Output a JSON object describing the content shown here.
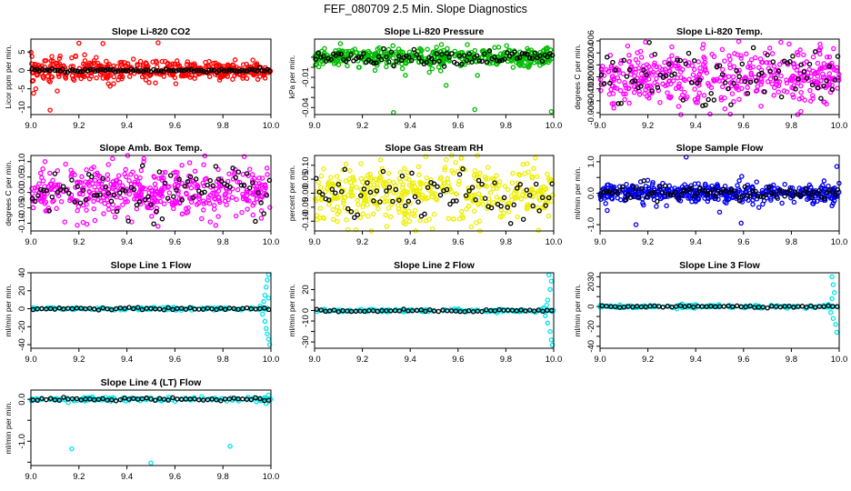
{
  "figure_title": "FEF_080709  2.5 Min. Slope Diagnostics",
  "chart_data": [
    {
      "type": "scatter",
      "title": "Slope Li-820 CO2",
      "ylabel": "Licor ppm per min.",
      "color": "#ff0000",
      "xlim": [
        9.0,
        10.0
      ],
      "ylim": [
        -12,
        8.5
      ],
      "xticks": [
        9.0,
        9.2,
        9.4,
        9.6,
        9.8,
        10.0
      ],
      "xticklabels": [
        "9.0",
        "9.2",
        "9.4",
        "9.6",
        "9.8",
        "10.0"
      ],
      "yticks": [
        -10,
        -5,
        0,
        5
      ],
      "yticklabels": [
        "-10",
        "-5",
        "0",
        "5"
      ],
      "x_range": [
        9.0,
        10.0
      ],
      "spread": 1.8,
      "decay": 0.5,
      "base": 0,
      "n": 430,
      "n_black": 95,
      "black_spread": 0.25,
      "extra": [
        [
          9.02,
          -5
        ],
        [
          9.08,
          -10.8
        ],
        [
          9.2,
          7.4
        ],
        [
          9.3,
          7.3
        ],
        [
          9.11,
          -5.6
        ],
        [
          9.17,
          3.4
        ],
        [
          9.53,
          7.5
        ],
        [
          9.33,
          -4.3
        ]
      ]
    },
    {
      "type": "scatter",
      "title": "Slope Li-820 Pressure",
      "ylabel": "kPa per min.",
      "color": "#00bb00",
      "xlim": [
        9.0,
        10.0
      ],
      "ylim": [
        -0.047,
        0.028
      ],
      "xticks": [
        9.0,
        9.2,
        9.4,
        9.6,
        9.8,
        10.0
      ],
      "xticklabels": [
        "9.0",
        "9.2",
        "9.4",
        "9.6",
        "9.8",
        "10.0"
      ],
      "yticks": [
        -0.04,
        -0.03,
        -0.02,
        -0.01,
        0.0,
        0.01
      ],
      "yticklabels": [
        "-0.04",
        "",
        "",
        "-0.01",
        "",
        ""
      ],
      "x_range": [
        9.0,
        10.0
      ],
      "spread": 0.0045,
      "decay": 0,
      "base": 0.01,
      "n": 430,
      "n_black": 95,
      "black_spread": 0.0035,
      "extra": [
        [
          9.33,
          -0.045
        ],
        [
          9.67,
          -0.042
        ],
        [
          9.99,
          -0.044
        ],
        [
          9.55,
          -0.018
        ],
        [
          9.38,
          -0.008
        ],
        [
          9.48,
          -0.005
        ],
        [
          9.51,
          0.02
        ],
        [
          9.77,
          0.02
        ]
      ]
    },
    {
      "type": "scatter",
      "title": "Slope Li-820 Temp.",
      "ylabel": "degrees C per min.",
      "color": "#ff00ff",
      "xlim": [
        9.0,
        10.0
      ],
      "ylim": [
        -0.0063,
        0.0063
      ],
      "xticks": [
        9.0,
        9.2,
        9.4,
        9.6,
        9.8,
        10.0
      ],
      "xticklabels": [
        "9.0",
        "9.2",
        "9.4",
        "9.6",
        "9.8",
        "10.0"
      ],
      "yticks": [
        -0.006,
        -0.004,
        -0.002,
        0,
        0.002,
        0.004,
        0.006
      ],
      "yticklabels": [
        "-0.006",
        "-0.004",
        "-0.002",
        "0.000",
        "0.002",
        "0.004",
        "0.006"
      ],
      "x_range": [
        9.0,
        10.0
      ],
      "spread": 0.0022,
      "decay": 0,
      "base": 0,
      "n": 450,
      "n_black": 85,
      "black_spread": 0.0022,
      "extra": [
        [
          9.05,
          -0.0045
        ],
        [
          9.19,
          0.0058
        ],
        [
          9.58,
          0.0059
        ],
        [
          9.84,
          -0.0058
        ],
        [
          9.3,
          0.005
        ],
        [
          9.71,
          0.0048
        ]
      ]
    },
    {
      "type": "scatter",
      "title": "Slope Amb. Box Temp.",
      "ylabel": "degrees C per min.",
      "color": "#ff00ff",
      "xlim": [
        9.0,
        10.0
      ],
      "ylim": [
        -0.125,
        0.12
      ],
      "xticks": [
        9.0,
        9.2,
        9.4,
        9.6,
        9.8,
        10.0
      ],
      "xticklabels": [
        "9.0",
        "9.2",
        "9.4",
        "9.6",
        "9.8",
        "10.0"
      ],
      "yticks": [
        -0.1,
        -0.05,
        0,
        0.05,
        0.1
      ],
      "yticklabels": [
        "-0.10",
        "-0.05",
        "0.00",
        "0.05",
        "0.10"
      ],
      "x_range": [
        9.0,
        10.0
      ],
      "spread": 0.04,
      "decay": 0,
      "base": 0,
      "n": 450,
      "n_black": 85,
      "black_spread": 0.04,
      "extra": [
        [
          9.34,
          0.11
        ],
        [
          9.47,
          0.1
        ],
        [
          9.53,
          -0.11
        ],
        [
          9.63,
          -0.07
        ],
        [
          9.72,
          0.09
        ]
      ]
    },
    {
      "type": "scatter",
      "title": "Slope Gas Stream RH",
      "ylabel": "percent per min.",
      "color": "#eeee00",
      "xlim": [
        9.0,
        10.0
      ],
      "ylim": [
        -0.135,
        0.135
      ],
      "xticks": [
        9.0,
        9.2,
        9.4,
        9.6,
        9.8,
        10.0
      ],
      "xticklabels": [
        "9.0",
        "9.2",
        "9.4",
        "9.6",
        "9.8",
        "10.0"
      ],
      "yticks": [
        -0.1,
        -0.05,
        0,
        0.05,
        0.1
      ],
      "yticklabels": [
        "-0.10",
        "-0.05",
        "0.00",
        "0.05",
        "0.10"
      ],
      "x_range": [
        9.0,
        10.0
      ],
      "spread": 0.05,
      "decay": 0,
      "base": 0,
      "n": 420,
      "n_black": 75,
      "black_spread": 0.05,
      "extra": [
        [
          9.55,
          0.12
        ],
        [
          9.59,
          0.11
        ],
        [
          9.38,
          -0.11
        ],
        [
          9.69,
          -0.1
        ],
        [
          9.14,
          -0.13
        ],
        [
          9.56,
          -0.09
        ]
      ]
    },
    {
      "type": "scatter",
      "title": "Slope Sample Flow",
      "ylabel": "ml/min per min.",
      "color": "#0000ee",
      "xlim": [
        9.0,
        10.0
      ],
      "ylim": [
        -1.2,
        1.2
      ],
      "xticks": [
        9.0,
        9.2,
        9.4,
        9.6,
        9.8,
        10.0
      ],
      "xticklabels": [
        "9.0",
        "9.2",
        "9.4",
        "9.6",
        "9.8",
        "10.0"
      ],
      "yticks": [
        -1.0,
        -0.5,
        0,
        0.5,
        1.0
      ],
      "yticklabels": [
        "-1.0",
        "",
        "0.0",
        "",
        "1.0"
      ],
      "x_range": [
        9.0,
        10.0
      ],
      "spread": 0.15,
      "decay": 0,
      "base": 0,
      "n": 450,
      "n_black": 90,
      "black_spread": 0.12,
      "extra": [
        [
          9.36,
          1.15
        ],
        [
          9.15,
          -1.0
        ],
        [
          9.59,
          -0.95
        ],
        [
          9.03,
          -0.55
        ],
        [
          9.99,
          0.85
        ],
        [
          9.97,
          -0.4
        ],
        [
          9.5,
          -0.6
        ]
      ]
    },
    {
      "type": "scatter",
      "title": "Slope Line 1 Flow",
      "ylabel": "ml/min per min.",
      "color": "#00e5ee",
      "xlim": [
        9.0,
        10.0
      ],
      "ylim": [
        -44,
        40
      ],
      "xticks": [
        9.0,
        9.2,
        9.4,
        9.6,
        9.8,
        10.0
      ],
      "xticklabels": [
        "9.0",
        "9.2",
        "9.4",
        "9.6",
        "9.8",
        "10.0"
      ],
      "yticks": [
        -40,
        -20,
        0,
        20,
        40
      ],
      "yticklabels": [
        "-40",
        "-20",
        "0",
        "20",
        "40"
      ],
      "x_range": [
        9.0,
        10.0
      ],
      "spread": 0.7,
      "decay": 0,
      "base": 0,
      "n": 140,
      "n_black": 55,
      "black_spread": 0.6,
      "extra": [
        [
          9.99,
          38
        ],
        [
          9.985,
          32
        ],
        [
          9.98,
          24
        ],
        [
          9.975,
          15
        ],
        [
          9.97,
          8
        ],
        [
          9.965,
          -6
        ],
        [
          9.975,
          -14
        ],
        [
          9.98,
          -22
        ],
        [
          9.99,
          -34
        ],
        [
          9.995,
          -40
        ],
        [
          9.955,
          3
        ],
        [
          9.985,
          -28
        ],
        [
          9.99,
          12
        ]
      ]
    },
    {
      "type": "scatter",
      "title": "Slope Line 2 Flow",
      "ylabel": "ml/min per min.",
      "color": "#00e5ee",
      "xlim": [
        9.0,
        10.0
      ],
      "ylim": [
        -36,
        36
      ],
      "xticks": [
        9.0,
        9.2,
        9.4,
        9.6,
        9.8,
        10.0
      ],
      "xticklabels": [
        "9.0",
        "9.2",
        "9.4",
        "9.6",
        "9.8",
        "10.0"
      ],
      "yticks": [
        -30,
        -20,
        -10,
        0,
        10,
        20
      ],
      "yticklabels": [
        "-30",
        "",
        "-10",
        "0",
        "",
        "20"
      ],
      "x_range": [
        9.0,
        10.0
      ],
      "spread": 0.7,
      "decay": 0,
      "base": 0,
      "n": 140,
      "n_black": 55,
      "black_spread": 0.6,
      "extra": [
        [
          9.98,
          34
        ],
        [
          9.99,
          28
        ],
        [
          9.985,
          20
        ],
        [
          9.975,
          10
        ],
        [
          9.97,
          5
        ],
        [
          9.965,
          -5
        ],
        [
          9.975,
          -12
        ],
        [
          9.985,
          -20
        ],
        [
          9.99,
          -28
        ],
        [
          9.995,
          -33
        ],
        [
          9.96,
          2
        ]
      ]
    },
    {
      "type": "scatter",
      "title": "Slope Line 3 Flow",
      "ylabel": "ml/min per min.",
      "color": "#00e5ee",
      "xlim": [
        9.0,
        10.0
      ],
      "ylim": [
        -42,
        34
      ],
      "xticks": [
        9.0,
        9.2,
        9.4,
        9.6,
        9.8,
        10.0
      ],
      "xticklabels": [
        "9.0",
        "9.2",
        "9.4",
        "9.6",
        "9.8",
        "10.0"
      ],
      "yticks": [
        -40,
        -30,
        -20,
        -10,
        0,
        10,
        20,
        30
      ],
      "yticklabels": [
        "-40",
        "",
        "-20",
        "",
        "0",
        "",
        "20",
        "30"
      ],
      "x_range": [
        9.0,
        10.0
      ],
      "spread": 0.8,
      "decay": 0,
      "base": 0,
      "n": 140,
      "n_black": 55,
      "black_spread": 0.6,
      "extra": [
        [
          9.97,
          30
        ],
        [
          9.975,
          22
        ],
        [
          9.98,
          14
        ],
        [
          9.97,
          8
        ],
        [
          9.965,
          -6
        ],
        [
          9.975,
          -12
        ],
        [
          9.985,
          -18
        ],
        [
          9.99,
          -26
        ],
        [
          9.955,
          2
        ]
      ]
    },
    {
      "type": "scatter",
      "title": "Slope Line 4 (LT) Flow",
      "ylabel": "ml/min per min.",
      "color": "#00e5ee",
      "xlim": [
        9.0,
        10.0
      ],
      "ylim": [
        -1.58,
        0.22
      ],
      "xticks": [
        9.0,
        9.2,
        9.4,
        9.6,
        9.8,
        10.0
      ],
      "xticklabels": [
        "9.0",
        "9.2",
        "9.4",
        "9.6",
        "9.8",
        "10.0"
      ],
      "yticks": [
        -1.5,
        -1.0,
        -0.5,
        0
      ],
      "yticklabels": [
        "",
        "-1.0",
        "",
        "0.0"
      ],
      "x_range": [
        9.0,
        10.0
      ],
      "spread": 0.025,
      "decay": 0,
      "base": 0,
      "n": 140,
      "n_black": 55,
      "black_spread": 0.02,
      "extra": [
        [
          9.17,
          -1.18
        ],
        [
          9.5,
          -1.52
        ],
        [
          9.83,
          -1.12
        ],
        [
          9.99,
          0.1
        ],
        [
          9.98,
          -0.1
        ],
        [
          9.99,
          -0.05
        ]
      ]
    }
  ]
}
